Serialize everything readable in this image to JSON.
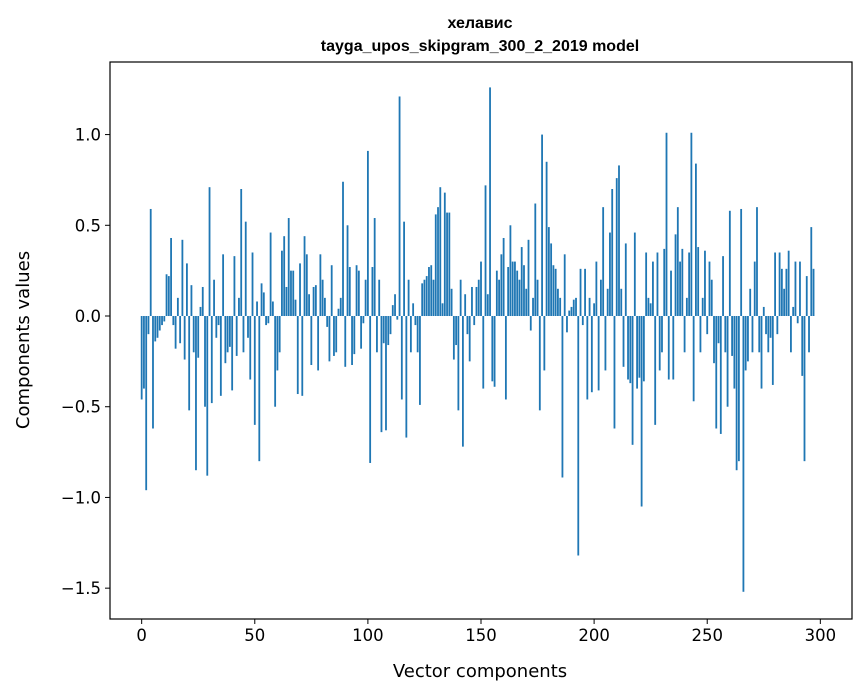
{
  "chart_data": {
    "type": "bar",
    "title": "хелавис",
    "subtitle": "tayga_upos_skipgram_300_2_2019 model",
    "xlabel": "Vector components",
    "ylabel": "Components values",
    "xlim": [
      -14,
      314
    ],
    "ylim": [
      -1.67,
      1.4
    ],
    "xticks": [
      0,
      50,
      100,
      150,
      200,
      250,
      300
    ],
    "xtick_labels": [
      "0",
      "50",
      "100",
      "150",
      "200",
      "250",
      "300"
    ],
    "yticks": [
      -1.5,
      -1.0,
      -0.5,
      0.0,
      0.5,
      1.0
    ],
    "ytick_labels": [
      "−1.5",
      "−1.0",
      "−0.5",
      "0.0",
      "0.5",
      "1.0"
    ],
    "grid": false,
    "bar_color": "#1f77b4",
    "x_start": 0,
    "values": [
      -0.46,
      -0.4,
      -0.96,
      -0.1,
      0.59,
      -0.62,
      -0.14,
      -0.12,
      -0.08,
      -0.05,
      -0.03,
      0.23,
      0.22,
      0.43,
      -0.05,
      -0.18,
      0.1,
      -0.15,
      0.42,
      -0.24,
      0.29,
      -0.52,
      0.17,
      -0.2,
      -0.85,
      -0.23,
      0.05,
      0.16,
      -0.5,
      -0.88,
      0.71,
      -0.48,
      0.2,
      -0.12,
      -0.05,
      -0.44,
      0.34,
      -0.26,
      -0.2,
      -0.17,
      -0.41,
      0.33,
      -0.22,
      0.1,
      0.7,
      -0.2,
      0.52,
      -0.12,
      -0.35,
      0.35,
      -0.6,
      0.08,
      -0.8,
      0.18,
      0.13,
      -0.05,
      -0.04,
      0.46,
      0.08,
      -0.5,
      -0.3,
      -0.2,
      0.36,
      0.44,
      0.16,
      0.54,
      0.25,
      0.25,
      0.09,
      -0.43,
      0.29,
      -0.44,
      0.44,
      0.34,
      0.12,
      -0.27,
      0.16,
      0.17,
      -0.3,
      0.34,
      0.2,
      0.1,
      -0.06,
      -0.25,
      0.28,
      -0.22,
      -0.2,
      0.04,
      0.1,
      0.74,
      -0.28,
      0.5,
      0.27,
      -0.27,
      -0.21,
      0.28,
      0.25,
      -0.18,
      -0.04,
      0.2,
      0.91,
      -0.81,
      0.27,
      0.54,
      -0.2,
      0.2,
      -0.64,
      -0.15,
      -0.63,
      -0.16,
      -0.1,
      0.06,
      0.12,
      -0.02,
      1.21,
      -0.46,
      0.52,
      -0.67,
      0.2,
      -0.2,
      0.07,
      -0.05,
      -0.2,
      -0.49,
      0.18,
      0.2,
      0.22,
      0.27,
      0.28,
      0.2,
      0.56,
      0.6,
      0.71,
      0.07,
      0.68,
      0.57,
      0.57,
      0.15,
      -0.24,
      -0.16,
      -0.52,
      0.2,
      -0.72,
      0.12,
      -0.1,
      -0.25,
      0.16,
      -0.05,
      0.16,
      0.2,
      0.3,
      -0.4,
      0.72,
      0.12,
      1.26,
      -0.36,
      -0.39,
      0.25,
      0.2,
      0.34,
      0.43,
      -0.46,
      0.27,
      0.5,
      0.3,
      0.3,
      0.25,
      0.2,
      0.38,
      0.28,
      0.15,
      0.42,
      -0.08,
      0.1,
      0.62,
      0.2,
      -0.52,
      1.0,
      -0.3,
      0.85,
      0.49,
      0.4,
      0.28,
      0.26,
      0.15,
      0.1,
      -0.89,
      0.34,
      -0.09,
      0.03,
      0.05,
      0.09,
      0.1,
      -1.32,
      0.26,
      -0.05,
      0.26,
      -0.46,
      0.1,
      -0.42,
      0.07,
      0.3,
      -0.41,
      0.2,
      0.6,
      -0.3,
      0.15,
      0.46,
      0.7,
      -0.62,
      0.76,
      0.83,
      0.15,
      -0.28,
      0.4,
      -0.35,
      -0.37,
      -0.71,
      0.46,
      -0.4,
      -0.34,
      -1.05,
      -0.36,
      0.35,
      0.1,
      0.07,
      0.3,
      -0.6,
      0.35,
      -0.3,
      -0.2,
      0.37,
      1.01,
      -0.35,
      0.25,
      -0.35,
      0.45,
      0.6,
      0.3,
      0.37,
      -0.2,
      0.1,
      0.35,
      1.01,
      -0.47,
      0.84,
      0.38,
      -0.2,
      0.1,
      0.36,
      -0.1,
      0.3,
      0.2,
      -0.26,
      -0.62,
      -0.15,
      -0.65,
      0.33,
      -0.2,
      -0.5,
      0.58,
      -0.22,
      -0.4,
      -0.85,
      -0.8,
      0.59,
      -1.52,
      -0.3,
      -0.25,
      0.15,
      -0.2,
      0.3,
      0.6,
      -0.2,
      -0.4,
      0.05,
      -0.1,
      -0.2,
      -0.12,
      -0.38,
      0.35,
      -0.1,
      0.35,
      0.26,
      0.15,
      0.26,
      0.36,
      -0.2,
      0.05,
      0.3,
      -0.04,
      0.3,
      -0.33,
      -0.8,
      0.22,
      -0.2,
      0.49,
      0.26
    ]
  }
}
